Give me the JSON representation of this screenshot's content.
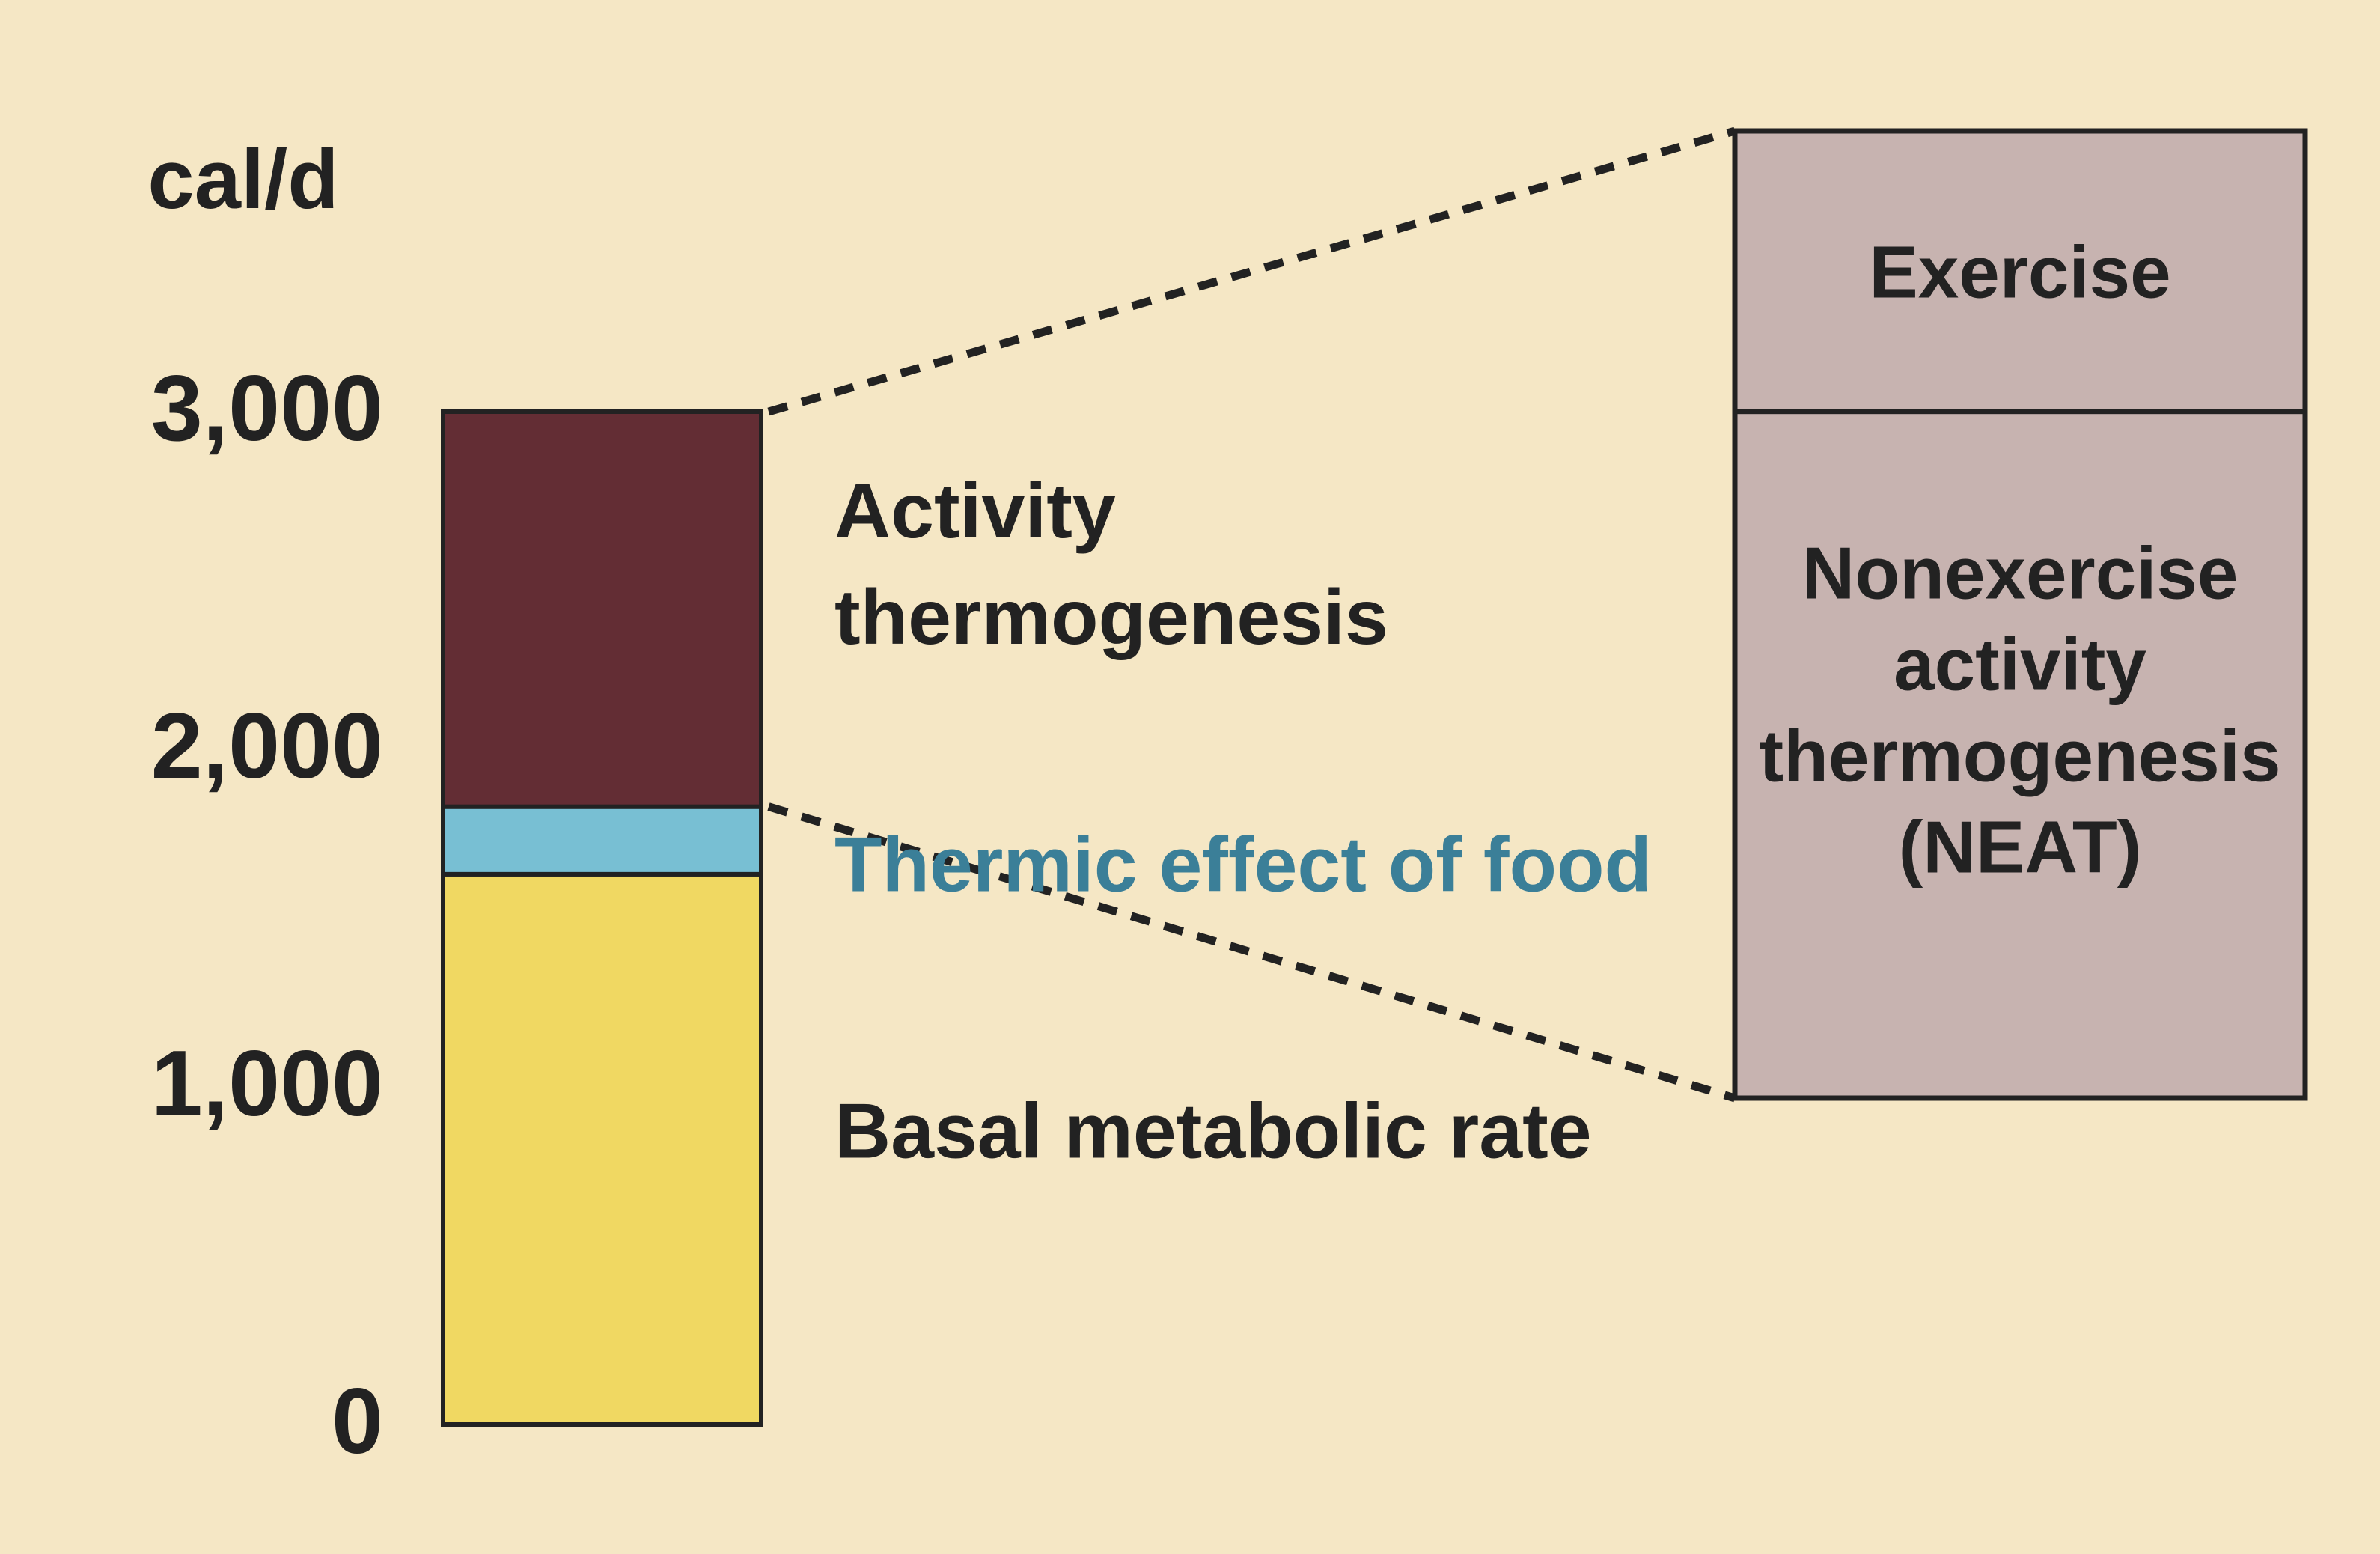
{
  "chart_data": {
    "type": "bar",
    "ylabel": "cal/d",
    "ylim": [
      0,
      3000
    ],
    "yticks": [
      {
        "value": 0,
        "label": "0"
      },
      {
        "value": 1000,
        "label": "1,000"
      },
      {
        "value": 2000,
        "label": "2,000"
      },
      {
        "value": 3000,
        "label": "3,000"
      }
    ],
    "segments": [
      {
        "name": "Basal metabolic rate",
        "start": 0,
        "end": 1630,
        "color": "#f0d862",
        "label_lines": [
          "Basal metabolic rate"
        ],
        "label_color": "#222222",
        "label_anchor_value": 870
      },
      {
        "name": "Thermic effect of food",
        "start": 1630,
        "end": 1830,
        "color": "#78bfd3",
        "label_lines": [
          "Thermic effect of food"
        ],
        "label_color": "#3b7f98",
        "label_anchor_value": 1660
      },
      {
        "name": "Activity thermogenesis",
        "start": 1830,
        "end": 3000,
        "color": "#632d34",
        "label_lines": [
          "Activity",
          "thermogenesis"
        ],
        "label_color": "#222222",
        "label_anchor_value": 2550
      }
    ],
    "breakdown": {
      "of": "Activity thermogenesis",
      "color": "#c7b3b0",
      "parts": [
        {
          "name": "Exercise",
          "label_lines": [
            "Exercise"
          ],
          "share": 0.29
        },
        {
          "name": "NEAT",
          "label_lines": [
            "Nonexercise",
            "activity",
            "thermogenesis",
            "(NEAT)"
          ],
          "share": 0.71
        }
      ]
    }
  },
  "colors": {
    "background": "#f5e7c5",
    "outline": "#222222",
    "text": "#222222"
  }
}
